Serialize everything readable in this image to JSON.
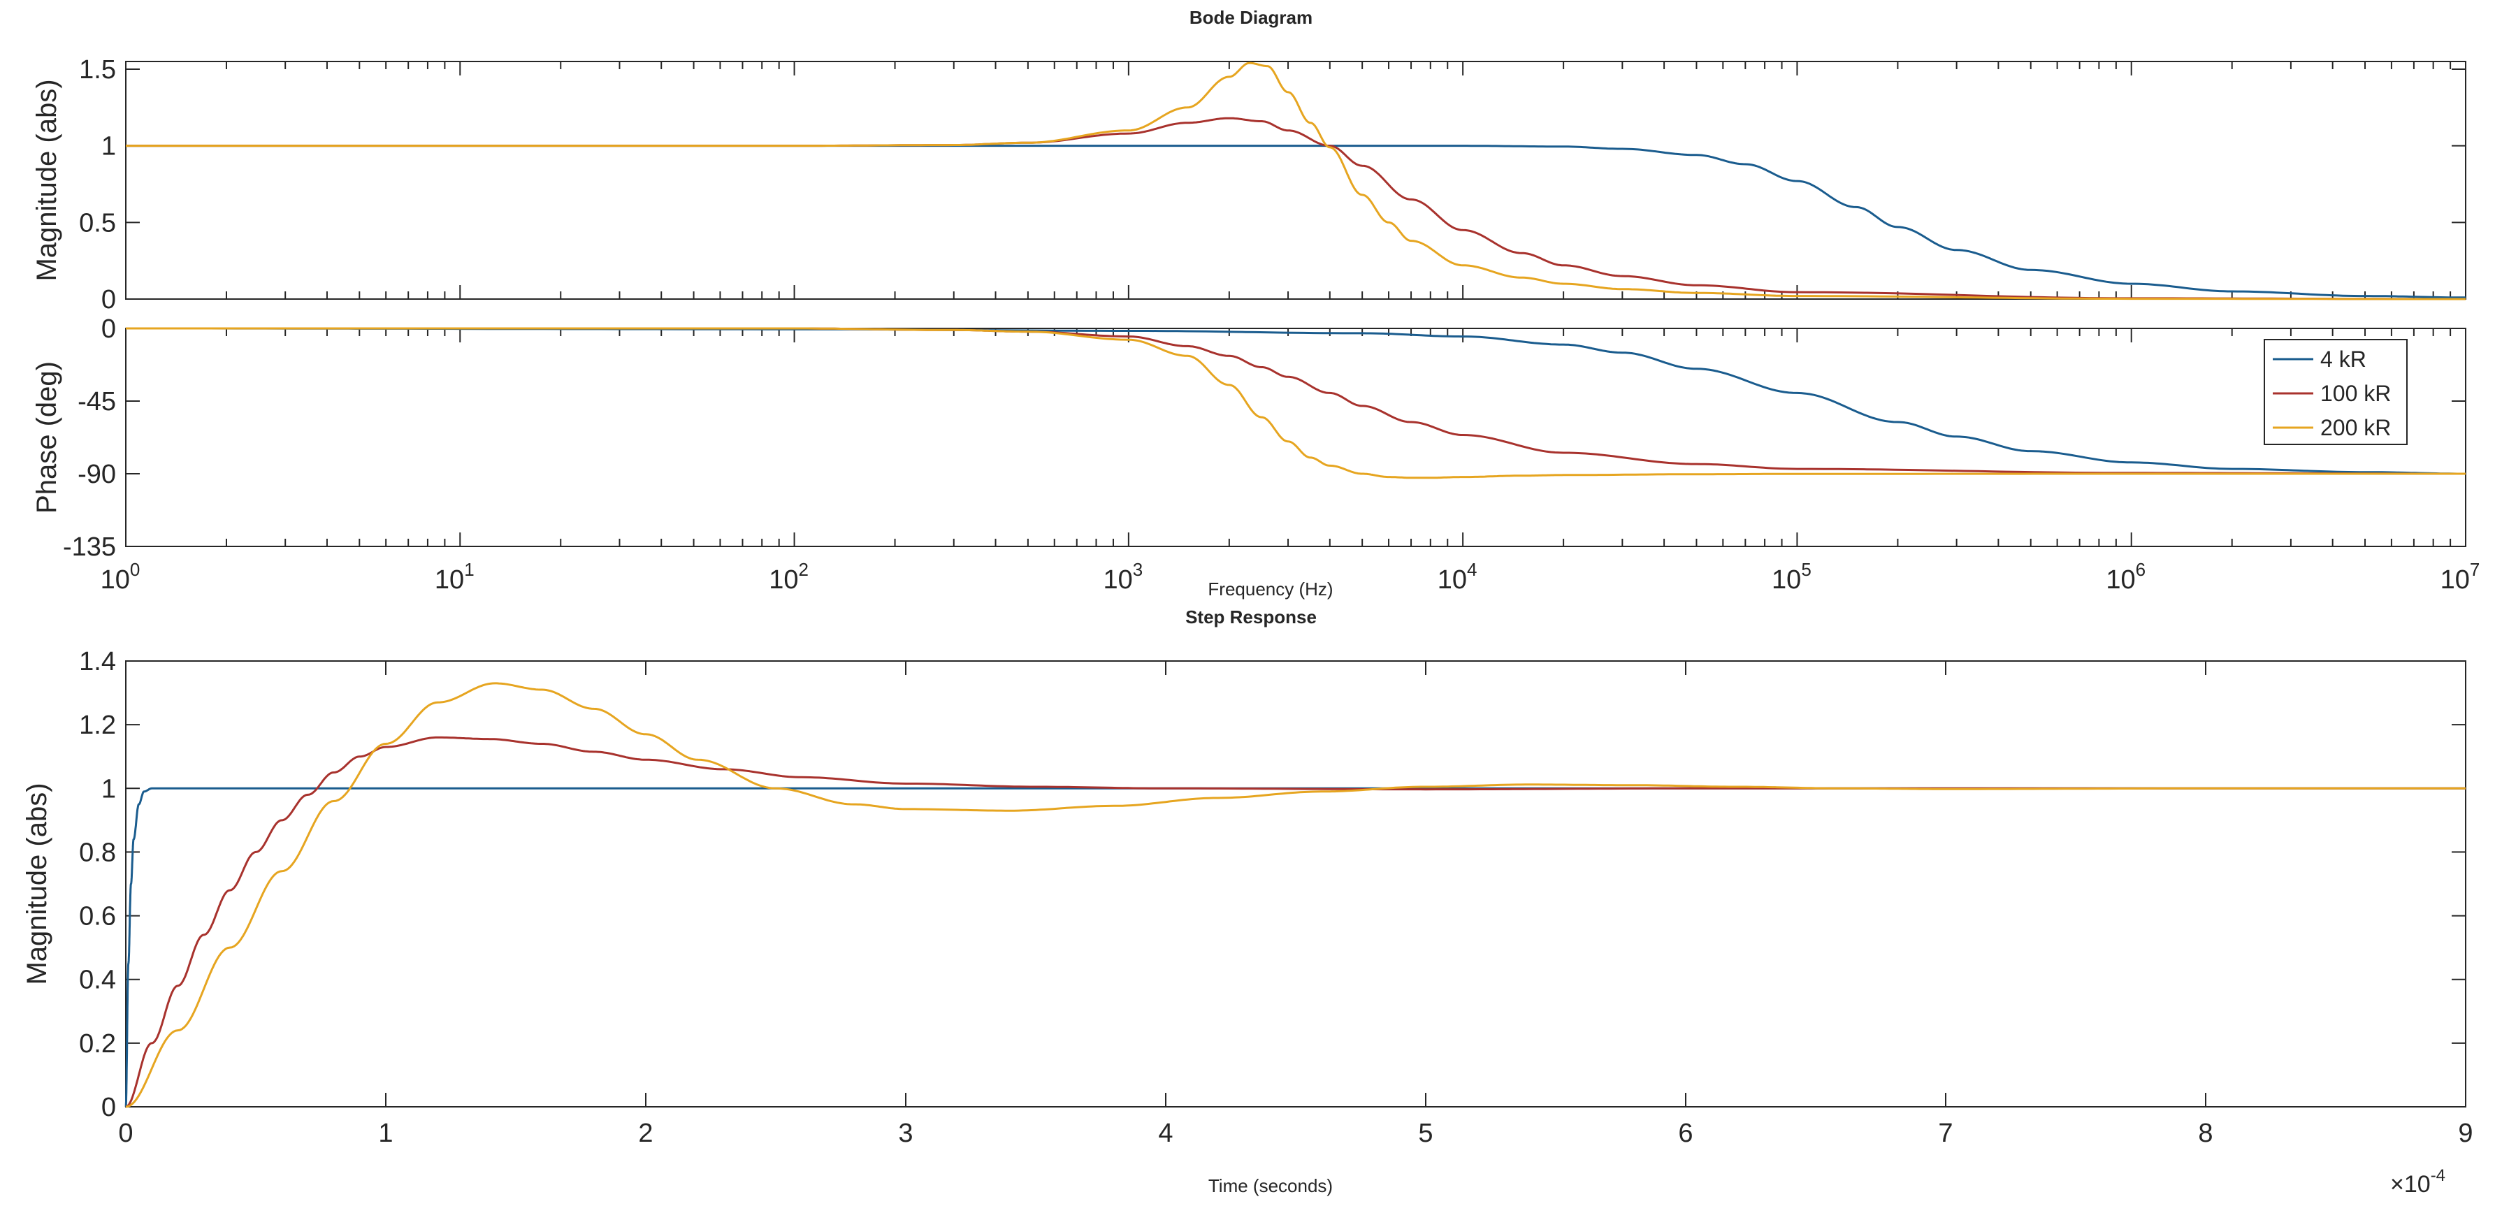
{
  "chart_data": [
    {
      "type": "line",
      "id": "bode_magnitude",
      "title": "Bode Diagram",
      "xlabel": "Frequency  (Hz)",
      "ylabel": "Magnitude (abs)",
      "xscale": "log",
      "xlim": [
        1,
        10000000
      ],
      "ylim": [
        0,
        1.55
      ],
      "yticks": [
        0,
        0.5,
        1,
        1.5
      ],
      "yticklabels": [
        "0",
        "0.5",
        "1",
        "1.5"
      ],
      "xticks": [
        1,
        10,
        100,
        1000,
        10000,
        100000,
        1000000,
        10000000
      ],
      "xtick_base": [
        "10",
        "10",
        "10",
        "10",
        "10",
        "10",
        "10",
        "10"
      ],
      "xtick_exp": [
        "0",
        "1",
        "2",
        "3",
        "4",
        "5",
        "6",
        "7"
      ],
      "series": [
        {
          "name": "4 kR",
          "color": "#1a5c8e",
          "x": [
            1,
            100,
            1000,
            10000,
            20000,
            30000,
            50000,
            70000,
            100000,
            150000,
            200000,
            300000,
            500000,
            1000000,
            2000000,
            5000000,
            10000000
          ],
          "y": [
            1.0,
            1.0,
            1.0,
            1.0,
            0.995,
            0.98,
            0.94,
            0.88,
            0.77,
            0.6,
            0.47,
            0.32,
            0.19,
            0.1,
            0.05,
            0.02,
            0.01
          ]
        },
        {
          "name": "100 kR",
          "color": "#a8322d",
          "x": [
            1,
            100,
            300,
            500,
            1000,
            1500,
            2000,
            2500,
            3000,
            4000,
            5000,
            7000,
            10000,
            15000,
            20000,
            30000,
            50000,
            100000,
            1000000,
            10000000
          ],
          "y": [
            1.0,
            1.0,
            1.005,
            1.02,
            1.08,
            1.15,
            1.18,
            1.16,
            1.1,
            1.0,
            0.87,
            0.65,
            0.45,
            0.3,
            0.22,
            0.15,
            0.09,
            0.045,
            0.005,
            0.0
          ]
        },
        {
          "name": "200 kR",
          "color": "#e6a520",
          "x": [
            1,
            100,
            300,
            500,
            1000,
            1500,
            2000,
            2300,
            2600,
            3000,
            3500,
            4000,
            5000,
            6000,
            7000,
            10000,
            15000,
            20000,
            30000,
            50000,
            100000,
            1000000,
            10000000
          ],
          "y": [
            1.0,
            1.0,
            1.005,
            1.02,
            1.1,
            1.25,
            1.45,
            1.54,
            1.52,
            1.35,
            1.15,
            0.99,
            0.68,
            0.5,
            0.38,
            0.22,
            0.14,
            0.1,
            0.065,
            0.04,
            0.02,
            0.002,
            0.0
          ]
        }
      ]
    },
    {
      "type": "line",
      "id": "bode_phase",
      "xlabel": "Frequency  (Hz)",
      "ylabel": "Phase (deg)",
      "xscale": "log",
      "xlim": [
        1,
        10000000
      ],
      "ylim": [
        -135,
        0
      ],
      "yticks": [
        0,
        -45,
        -90,
        -135
      ],
      "yticklabels": [
        "0",
        "-45",
        "-90",
        "-135"
      ],
      "legend": {
        "location": "top-right",
        "entries": [
          "4 kR",
          "100 kR",
          "200 kR"
        ]
      },
      "series": [
        {
          "name": "4 kR",
          "color": "#1a5c8e",
          "x": [
            1,
            100,
            1000,
            5000,
            10000,
            20000,
            30000,
            50000,
            100000,
            200000,
            300000,
            500000,
            1000000,
            2000000,
            5000000,
            10000000
          ],
          "y": [
            0,
            -0.5,
            -1.5,
            -3,
            -5,
            -10,
            -15,
            -25,
            -40,
            -58,
            -67,
            -76,
            -83,
            -87,
            -89,
            -90
          ]
        },
        {
          "name": "100 kR",
          "color": "#a8322d",
          "x": [
            1,
            100,
            300,
            500,
            1000,
            1500,
            2000,
            2500,
            3000,
            4000,
            5000,
            7000,
            10000,
            20000,
            50000,
            100000,
            1000000,
            10000000
          ],
          "y": [
            0,
            0,
            -1,
            -2,
            -5,
            -11,
            -17,
            -24,
            -30,
            -40,
            -48,
            -58,
            -66,
            -77,
            -84,
            -87,
            -89.5,
            -90
          ]
        },
        {
          "name": "200 kR",
          "color": "#e6a520",
          "x": [
            1,
            100,
            300,
            500,
            1000,
            1500,
            2000,
            2500,
            3000,
            3500,
            4000,
            5000,
            6000,
            7000,
            8000,
            10000,
            15000,
            20000,
            50000,
            100000,
            1000000,
            10000000
          ],
          "y": [
            0,
            0,
            -1,
            -2,
            -7,
            -17,
            -35,
            -55,
            -70,
            -80,
            -85,
            -90,
            -92,
            -92.5,
            -92.5,
            -92,
            -91.2,
            -90.8,
            -90.3,
            -90.1,
            -90,
            -90
          ]
        }
      ]
    },
    {
      "type": "line",
      "id": "step_response",
      "title": "Step Response",
      "xlabel": "Time (seconds)",
      "ylabel": "Magnitude (abs)",
      "x_multiplier": "×10",
      "x_multiplier_exp": "-4",
      "xlim": [
        0,
        9
      ],
      "ylim": [
        0,
        1.4
      ],
      "xticks": [
        0,
        1,
        2,
        3,
        4,
        5,
        6,
        7,
        8,
        9
      ],
      "xticklabels": [
        "0",
        "1",
        "2",
        "3",
        "4",
        "5",
        "6",
        "7",
        "8",
        "9"
      ],
      "yticks": [
        0,
        0.2,
        0.4,
        0.6,
        0.8,
        1,
        1.2,
        1.4
      ],
      "yticklabels": [
        "0",
        "0.2",
        "0.4",
        "0.6",
        "0.8",
        "1",
        "1.2",
        "1.4"
      ],
      "series": [
        {
          "name": "4 kR",
          "color": "#1a5c8e",
          "x": [
            0,
            0.01,
            0.02,
            0.03,
            0.05,
            0.07,
            0.1,
            0.15,
            9
          ],
          "y": [
            0,
            0.45,
            0.7,
            0.84,
            0.95,
            0.99,
            1.0,
            1.0,
            1.0
          ]
        },
        {
          "name": "100 kR",
          "color": "#a8322d",
          "x": [
            0,
            0.1,
            0.2,
            0.3,
            0.4,
            0.5,
            0.6,
            0.7,
            0.8,
            0.9,
            1.0,
            1.2,
            1.4,
            1.6,
            1.8,
            2.0,
            2.3,
            2.6,
            3.0,
            3.5,
            4.0,
            5.0,
            6.0,
            7.0,
            9.0
          ],
          "y": [
            0,
            0.2,
            0.38,
            0.54,
            0.68,
            0.8,
            0.9,
            0.98,
            1.05,
            1.1,
            1.13,
            1.16,
            1.155,
            1.14,
            1.115,
            1.09,
            1.06,
            1.035,
            1.015,
            1.005,
            1.0,
            0.997,
            1.0,
            1.0,
            1.0
          ]
        },
        {
          "name": "200 kR",
          "color": "#e6a520",
          "x": [
            0,
            0.2,
            0.4,
            0.6,
            0.8,
            1.0,
            1.2,
            1.42,
            1.6,
            1.8,
            2.0,
            2.2,
            2.5,
            2.8,
            3.0,
            3.4,
            3.8,
            4.2,
            4.6,
            5.0,
            5.4,
            5.8,
            6.2,
            6.6,
            7.0,
            8.0,
            9.0
          ],
          "y": [
            0,
            0.24,
            0.5,
            0.74,
            0.96,
            1.14,
            1.27,
            1.33,
            1.31,
            1.25,
            1.17,
            1.09,
            1.0,
            0.95,
            0.935,
            0.93,
            0.945,
            0.97,
            0.99,
            1.005,
            1.012,
            1.01,
            1.005,
            1.0,
            0.998,
            1.0,
            1.0
          ]
        }
      ]
    }
  ]
}
